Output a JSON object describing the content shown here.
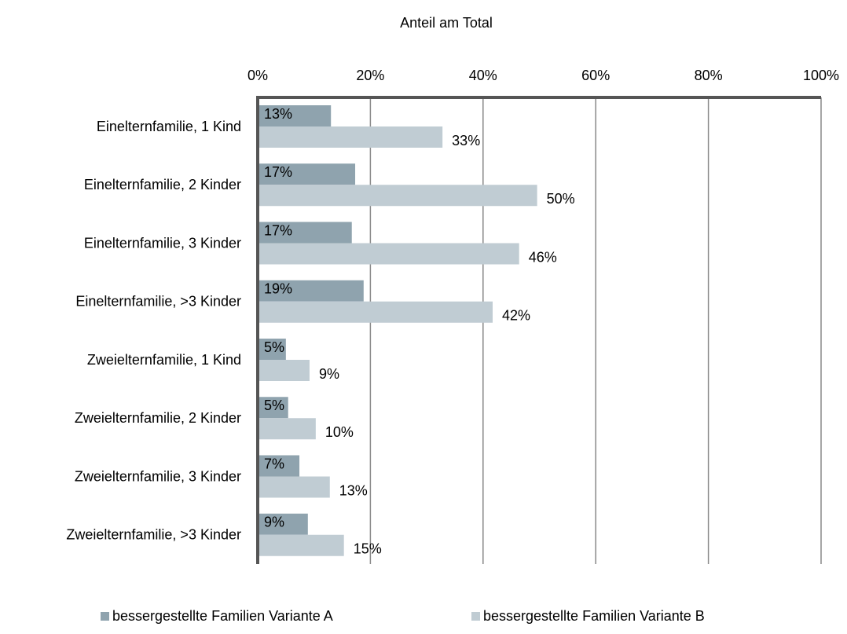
{
  "chart_data": {
    "type": "bar",
    "orientation": "horizontal",
    "x_axis_label": "Anteil am Total",
    "categories": [
      "Einelternfamilie, 1 Kind",
      "Einelternfamilie, 2 Kinder",
      "Einelternfamilie, 3 Kinder",
      "Einelternfamilie, >3 Kinder",
      "Zweielternfamilie, 1 Kind",
      "Zweielternfamilie, 2 Kinder",
      "Zweielternfamilie, 3 Kinder",
      "Zweielternfamilie, >3 Kinder"
    ],
    "series": [
      {
        "name": "bessergestellte Familien Variante A",
        "color": "#8fa3ae",
        "values": [
          13.0,
          17.3,
          16.7,
          18.8,
          5.0,
          5.4,
          7.4,
          8.9
        ],
        "value_labels": [
          "13%",
          "17%",
          "17%",
          "19%",
          "5%",
          "5%",
          "7%",
          "9%"
        ]
      },
      {
        "name": "bessergestellte Familien Variante B",
        "color": "#c0ccd3",
        "values": [
          32.8,
          49.6,
          46.4,
          41.7,
          9.2,
          10.3,
          12.8,
          15.3
        ],
        "value_labels": [
          "33%",
          "50%",
          "46%",
          "42%",
          "9%",
          "10%",
          "13%",
          "15%"
        ]
      }
    ],
    "xlim": [
      0,
      100
    ],
    "xticks": [
      {
        "value": 0,
        "label": "0%"
      },
      {
        "value": 20,
        "label": "20%"
      },
      {
        "value": 40,
        "label": "40%"
      },
      {
        "value": 60,
        "label": "60%"
      },
      {
        "value": 80,
        "label": "80%"
      },
      {
        "value": 100,
        "label": "100%"
      }
    ],
    "grid": true,
    "legend": "bottom"
  }
}
